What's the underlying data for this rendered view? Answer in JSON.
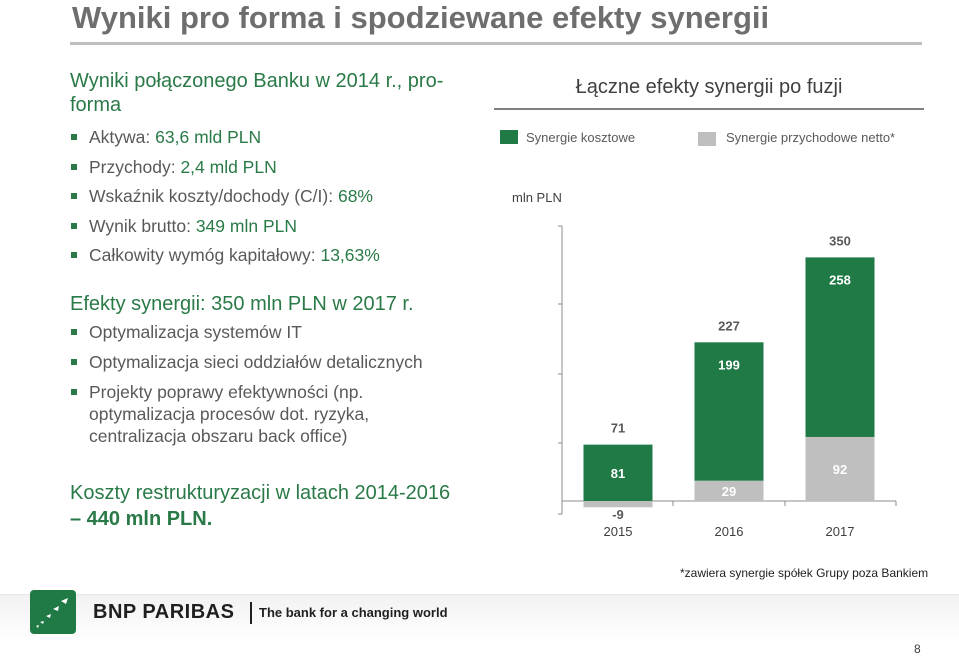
{
  "title": "Wyniki pro forma i spodziewane efekty synergii",
  "left": {
    "section1_heading": "Wyniki połączonego Banku w 2014 r., pro-forma",
    "section1_items": [
      {
        "label": "Aktywa: ",
        "value": "63,6 mld PLN"
      },
      {
        "label": "Przychody: ",
        "value": "2,4 mld PLN"
      },
      {
        "label": "Wskaźnik koszty/dochody (C/I): ",
        "value": "68%"
      },
      {
        "label": "Wynik brutto: ",
        "value": "349 mln PLN"
      },
      {
        "label": "Całkowity wymóg kapitałowy: ",
        "value": "13,63%"
      }
    ],
    "section2_heading": "Efekty synergii: 350 mln PLN w 2017 r.",
    "section2_items": [
      "Optymalizacja systemów IT",
      "Optymalizacja sieci oddziałów detalicznych",
      "Projekty poprawy efektywności (np. optymalizacja procesów dot. ryzyka, centralizacja obszaru back office)"
    ],
    "restructuring_line1": "Koszty restrukturyzacji w latach 2014-2016",
    "restructuring_line2": "– 440 mln PLN."
  },
  "chart_data": {
    "type": "bar",
    "title": "Łączne efekty synergii po fuzji",
    "ylabel": "mln PLN",
    "categories": [
      "2015",
      "2016",
      "2017"
    ],
    "series": [
      {
        "name": "Synergie kosztowe",
        "values": [
          81,
          199,
          258
        ],
        "color": "#1f7a45"
      },
      {
        "name": "Synergie przychodowe netto*",
        "values": [
          -9,
          29,
          92
        ],
        "color": "#bfbfbf"
      }
    ],
    "totals": [
      71,
      227,
      350
    ],
    "stacked": true,
    "legend": "top"
  },
  "footnote": "*zawiera synergie spółek Grupy poza Bankiem",
  "footer": {
    "brand": "BNP PARIBAS",
    "tagline": "The bank for a changing world"
  },
  "page_number": "8"
}
